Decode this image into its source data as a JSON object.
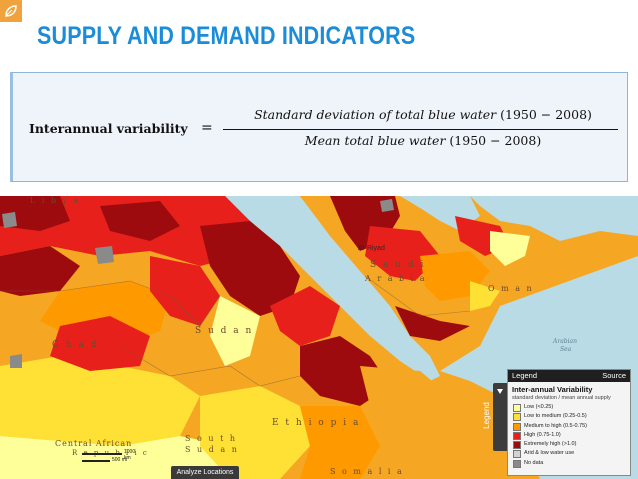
{
  "slide": {
    "title": "SUPPLY AND DEMAND INDICATORS",
    "logo_icon": "leaf-badge-icon"
  },
  "formula": {
    "label": "Interannual variability",
    "equals": "=",
    "numerator_italic": "Standard deviation of total blue water",
    "numerator_range": "(1950 − 2008)",
    "denominator_italic": "Mean total blue water",
    "denominator_range": "(1950 − 2008)"
  },
  "map": {
    "labels": {
      "libya": "L i b y a",
      "chad": "C h a d",
      "sudan": "S u d a n",
      "car": "Central African",
      "car2": "R e p u b l i c",
      "south_sudan": "S o u t h",
      "south_sudan2": "S u d a n",
      "ethiopia": "E t h i o p i a",
      "saudi": "S a u d i",
      "arabia": "A r a b i a",
      "oman": "O m a n",
      "arabian_sea": "Arabian",
      "arabian_sea2": "Sea",
      "riyadh": "Ar Riyad",
      "somalia": "S o m a l i a"
    },
    "scale_label_1": "1000 km",
    "scale_label_2": "500 mi",
    "analyze_button": "Analyze Locations"
  },
  "legend": {
    "tab_label": "Legend",
    "header_left": "Legend",
    "header_right": "Source",
    "title": "Inter-annual Variability",
    "subtitle": "standard deviation / mean annual supply",
    "items": [
      {
        "label": "Low (<0.25)",
        "color": "#ffff99"
      },
      {
        "label": "Low to medium (0.25-0.5)",
        "color": "#ffe135"
      },
      {
        "label": "Medium to high (0.5-0.75)",
        "color": "#ff9900"
      },
      {
        "label": "High (0.75-1.0)",
        "color": "#e8201c"
      },
      {
        "label": "Extremely high (>1.0)",
        "color": "#9e0b0f"
      },
      {
        "label": "Arid & low water use",
        "color": "#d3d3d3"
      },
      {
        "label": "No data",
        "color": "#8a8a8a"
      }
    ]
  },
  "colors": {
    "title": "#1a8cd8",
    "water": "#b9dbe6",
    "low": "#ffff99",
    "low_medium": "#ffe135",
    "medium_high": "#ff9900",
    "high": "#e8201c",
    "extremely_high": "#9e0b0f",
    "arid": "#d3d3d3",
    "no_data": "#8a8a8a"
  }
}
